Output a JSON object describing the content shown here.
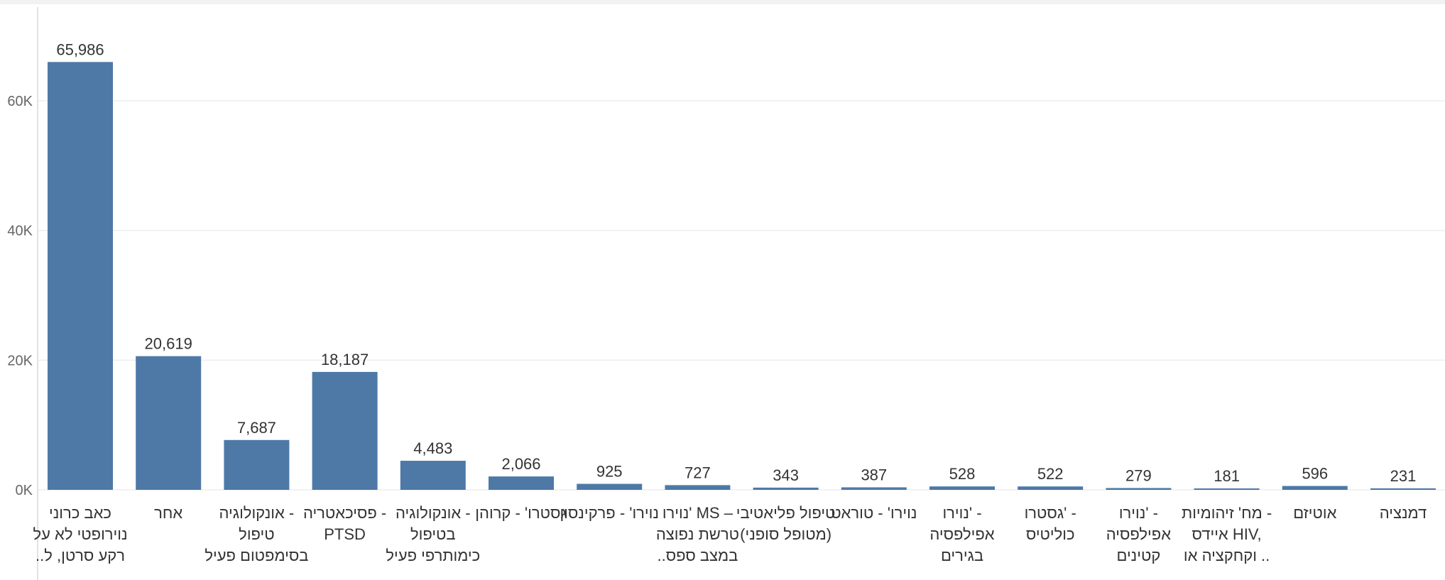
{
  "chart_data": {
    "type": "bar",
    "categories": [
      [
        "כאב כרוני",
        "נוירופטי לא על",
        "..רקע סרטן, ל"
      ],
      [
        "אחר"
      ],
      [
        "אונקולוגיה -",
        "טיפול",
        "בסימפטום פעיל"
      ],
      [
        "פסיכאטריה -",
        "PTSD"
      ],
      [
        "אונקולוגיה -",
        "בטיפול",
        "כימותרפי פעיל"
      ],
      [
        "גסטרו' - קרוהן"
      ],
      [
        "נוירו' - פרקינסון"
      ],
      [
        "נוירו' MS –",
        "טרשת נפוצה",
        "..במצב ספס"
      ],
      [
        "טיפול פליאטיבי",
        "(מטופל סופני)"
      ],
      [
        "נוירו' - טוראט"
      ],
      [
        "נוירו' -",
        "אפילפסיה",
        "בגירים"
      ],
      [
        "גסטרו' -",
        "כוליטיס"
      ],
      [
        "נוירו' -",
        "אפילפסיה",
        "קטינים"
      ],
      [
        "מח' זיהומיות -",
        "איידס HIV,",
        "וקחקציה או .."
      ],
      [
        "אוטיזם"
      ],
      [
        "דמנציה"
      ]
    ],
    "values": [
      65986,
      20619,
      7687,
      18187,
      4483,
      2066,
      925,
      727,
      343,
      387,
      528,
      522,
      279,
      181,
      596,
      231
    ],
    "value_labels": [
      "65,986",
      "20,619",
      "7,687",
      "18,187",
      "4,483",
      "2,066",
      "925",
      "727",
      "343",
      "387",
      "528",
      "522",
      "279",
      "181",
      "596",
      "231"
    ],
    "yticks": [
      0,
      20000,
      40000,
      60000
    ],
    "ytick_labels": [
      "0K",
      "20K",
      "40K",
      "60K"
    ],
    "ylim": [
      0,
      74000
    ],
    "title": "",
    "xlabel": "",
    "ylabel": "",
    "grid": true,
    "bar_color": "#4e79a7",
    "grid_color": "#eeeeee",
    "axis_color": "#d9d9d9"
  }
}
